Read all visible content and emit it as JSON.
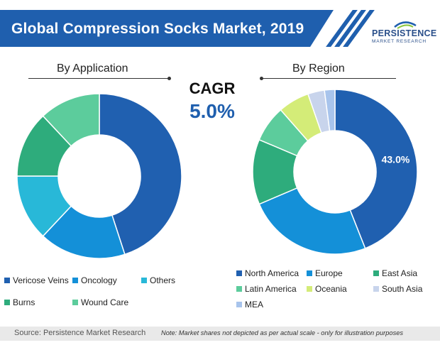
{
  "header": {
    "title": "Global Compression Socks Market, 2019",
    "logo_name": "PERSISTENCE",
    "logo_sub": "MARKET RESEARCH"
  },
  "cagr": {
    "label": "CAGR",
    "value": "5.0%"
  },
  "chart_data": [
    {
      "type": "pie",
      "title": "By Application",
      "labels": [
        "Vericose Veins",
        "Oncology",
        "Others",
        "Burns",
        "Wound Care"
      ],
      "values": [
        45,
        17,
        13,
        13,
        12
      ],
      "colors": [
        "#2060b0",
        "#1490d8",
        "#28b8d8",
        "#2eac7c",
        "#5ccc9c"
      ],
      "hole": 0.5,
      "legend_position": "bottom"
    },
    {
      "type": "pie",
      "title": "By Region",
      "labels": [
        "North America",
        "Europe",
        "East Asia",
        "Latin America",
        "Oceania",
        "South Asia",
        "MEA"
      ],
      "values": [
        43,
        24,
        12.5,
        7,
        6,
        3.2,
        2
      ],
      "colors": [
        "#2060b0",
        "#1490d8",
        "#2eac7c",
        "#5ccc9c",
        "#d4ec78",
        "#c8d4ec",
        "#a8c4ec"
      ],
      "data_labels": [
        "43.0%"
      ],
      "hole": 0.5,
      "legend_position": "bottom"
    }
  ],
  "footer": {
    "source": "Source: Persistence Market Research",
    "note": "Note: Market shares not depicted as per actual scale - only for illustration purposes"
  }
}
